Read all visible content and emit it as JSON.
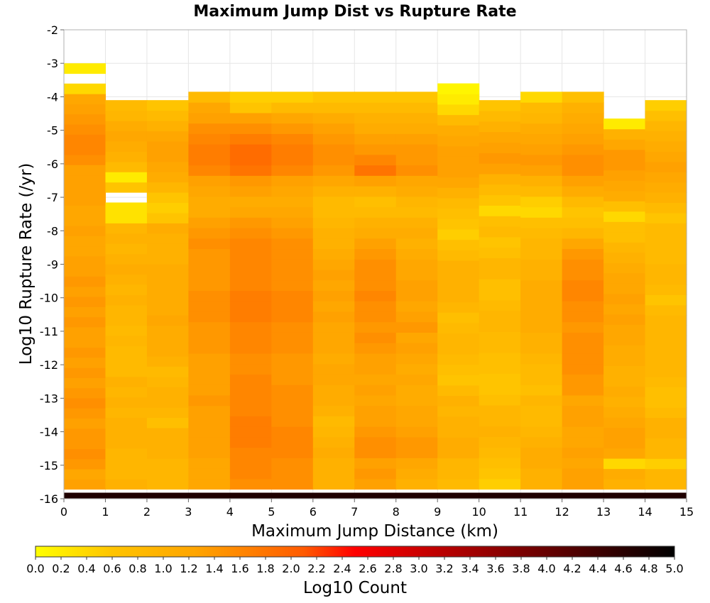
{
  "chart_data": {
    "type": "heatmap",
    "title": "Maximum Jump Dist vs Rupture Rate",
    "xlabel": "Maximum Jump Distance (km)",
    "ylabel": "Log10 Rupture Rate (/yr)",
    "xlim": [
      0,
      15
    ],
    "ylim": [
      -16,
      -2
    ],
    "x_ticks": [
      "0",
      "1",
      "2",
      "3",
      "4",
      "5",
      "6",
      "7",
      "8",
      "9",
      "10",
      "11",
      "12",
      "13",
      "14",
      "15"
    ],
    "y_ticks": [
      "-2",
      "-3",
      "-4",
      "-5",
      "-6",
      "-7",
      "-8",
      "-9",
      "-10",
      "-11",
      "-12",
      "-13",
      "-14",
      "-15",
      "-16"
    ],
    "x_bin_width": 1,
    "y_bin_width": 0.2857,
    "y_bin_start": -16,
    "colorbar": {
      "label": "Log10 Count",
      "range": [
        0,
        5
      ],
      "ticks": [
        "0.0",
        "0.2",
        "0.4",
        "0.6",
        "0.8",
        "1.0",
        "1.2",
        "1.4",
        "1.6",
        "1.8",
        "2.0",
        "2.2",
        "2.4",
        "2.6",
        "2.8",
        "3.0",
        "3.2",
        "3.4",
        "3.6",
        "3.8",
        "4.0",
        "4.2",
        "4.4",
        "4.6",
        "4.8",
        "5.0"
      ],
      "stops": [
        "#ffff00",
        "#ffa500",
        "#ff0000",
        "#000000"
      ]
    },
    "bottom_row_value": 4.7,
    "columns": [
      {
        "x_bin": "0-1",
        "top_rate": -3.0,
        "values": [
          1.3,
          1.2,
          1.4,
          1.5,
          1.4,
          1.4,
          1.3,
          1.4,
          1.5,
          1.4,
          1.3,
          1.4,
          1.3,
          1.4,
          1.3,
          1.3,
          1.4,
          1.3,
          1.4,
          1.3,
          1.4,
          1.3,
          1.3,
          1.2,
          1.2,
          1.3,
          1.2,
          1.2,
          1.3,
          1.3,
          1.3,
          1.3,
          1.5,
          1.6,
          1.6,
          1.5,
          1.4,
          1.3,
          1.2,
          0.4,
          null,
          0.2
        ]
      },
      {
        "x_bin": "1-2",
        "top_rate": -4.1,
        "values": [
          1.0,
          0.9,
          0.9,
          0.9,
          1.0,
          1.0,
          1.0,
          0.9,
          1.0,
          0.9,
          1.0,
          0.8,
          0.8,
          0.8,
          0.9,
          0.8,
          0.9,
          0.9,
          1.0,
          0.9,
          1.0,
          1.1,
          1.0,
          0.9,
          1.0,
          0.9,
          0.3,
          0.3,
          null,
          0.6,
          0.2,
          0.8,
          1.0,
          1.1,
          1.2,
          1.1,
          0.9,
          0.8
        ]
      },
      {
        "x_bin": "2-3",
        "top_rate": -4.1,
        "values": [
          0.9,
          0.9,
          0.9,
          1.0,
          1.0,
          1.0,
          0.7,
          0.9,
          1.0,
          1.0,
          0.9,
          0.8,
          1.0,
          1.1,
          1.1,
          1.1,
          1.2,
          1.1,
          1.1,
          1.1,
          1.1,
          1.1,
          1.0,
          1.0,
          1.0,
          1.1,
          0.6,
          0.5,
          0.6,
          0.9,
          1.1,
          1.2,
          1.3,
          1.3,
          1.2,
          1.0,
          0.8,
          0.6
        ]
      },
      {
        "x_bin": "3-4",
        "top_rate": -3.85,
        "values": [
          1.2,
          1.2,
          1.2,
          1.3,
          1.3,
          1.3,
          1.3,
          1.3,
          1.4,
          1.3,
          1.3,
          1.3,
          1.3,
          1.4,
          1.4,
          1.4,
          1.5,
          1.5,
          1.5,
          1.4,
          1.4,
          1.4,
          1.4,
          1.5,
          1.4,
          1.3,
          1.1,
          1.1,
          1.2,
          1.3,
          1.6,
          1.7,
          1.7,
          1.6,
          1.5,
          1.3,
          1.2,
          0.8
        ]
      },
      {
        "x_bin": "4-5",
        "top_rate": -3.85,
        "values": [
          1.5,
          1.6,
          1.6,
          1.6,
          1.7,
          1.7,
          1.7,
          1.6,
          1.6,
          1.6,
          1.6,
          1.5,
          1.5,
          1.6,
          1.6,
          1.6,
          1.7,
          1.7,
          1.7,
          1.6,
          1.6,
          1.6,
          1.6,
          1.6,
          1.5,
          1.4,
          1.2,
          1.1,
          1.3,
          1.4,
          1.8,
          1.9,
          1.9,
          1.7,
          1.5,
          1.3,
          0.6,
          0.5
        ]
      },
      {
        "x_bin": "5-6",
        "top_rate": -3.85,
        "values": [
          1.5,
          1.5,
          1.5,
          1.6,
          1.6,
          1.6,
          1.5,
          1.5,
          1.5,
          1.5,
          1.4,
          1.4,
          1.4,
          1.5,
          1.5,
          1.5,
          1.6,
          1.6,
          1.6,
          1.5,
          1.5,
          1.5,
          1.5,
          1.5,
          1.4,
          1.3,
          1.2,
          1.1,
          1.2,
          1.3,
          1.6,
          1.7,
          1.7,
          1.6,
          1.4,
          1.2,
          0.8,
          0.5
        ]
      },
      {
        "x_bin": "6-7",
        "top_rate": -3.85,
        "values": [
          1.0,
          1.0,
          1.0,
          1.1,
          1.0,
          0.9,
          0.8,
          1.0,
          1.1,
          1.1,
          1.2,
          1.2,
          1.1,
          1.2,
          1.2,
          1.2,
          1.3,
          1.2,
          1.3,
          1.2,
          1.3,
          1.2,
          1.1,
          1.0,
          1.0,
          0.9,
          0.8,
          0.8,
          1.0,
          1.2,
          1.4,
          1.5,
          1.5,
          1.4,
          1.3,
          1.1,
          0.8,
          0.6
        ]
      },
      {
        "x_bin": "7-8",
        "top_rate": -3.85,
        "values": [
          1.3,
          1.4,
          1.3,
          1.5,
          1.5,
          1.4,
          1.3,
          1.3,
          1.2,
          1.3,
          1.2,
          1.3,
          1.3,
          1.4,
          1.5,
          1.4,
          1.5,
          1.5,
          1.6,
          1.5,
          1.5,
          1.5,
          1.4,
          1.3,
          1.1,
          1.0,
          0.8,
          0.7,
          1.0,
          1.3,
          1.8,
          1.6,
          1.4,
          1.3,
          1.1,
          1.0,
          0.8,
          0.6
        ]
      },
      {
        "x_bin": "8-9",
        "top_rate": -3.85,
        "values": [
          1.0,
          1.1,
          1.2,
          1.4,
          1.4,
          1.3,
          1.2,
          1.2,
          1.1,
          1.1,
          1.2,
          1.1,
          1.2,
          1.3,
          1.2,
          1.4,
          1.3,
          1.2,
          1.3,
          1.3,
          1.2,
          1.2,
          1.1,
          1.0,
          1.1,
          1.0,
          0.8,
          0.9,
          1.1,
          1.2,
          1.5,
          1.4,
          1.4,
          1.3,
          1.1,
          1.0,
          0.8,
          0.6
        ]
      },
      {
        "x_bin": "9-10",
        "top_rate": -3.6,
        "values": [
          0.8,
          0.9,
          0.9,
          1.1,
          1.1,
          1.0,
          1.0,
          0.9,
          1.0,
          0.8,
          0.6,
          0.7,
          0.8,
          0.9,
          0.9,
          0.8,
          0.7,
          0.9,
          1.0,
          1.0,
          1.0,
          1.0,
          0.8,
          0.7,
          0.5,
          0.6,
          0.7,
          0.8,
          1.0,
          1.2,
          1.3,
          1.3,
          1.3,
          1.2,
          1.1,
          0.8,
          0.4,
          0.2,
          0.1
        ]
      },
      {
        "x_bin": "10-11",
        "top_rate": -4.1,
        "values": [
          0.5,
          0.6,
          0.7,
          0.8,
          0.9,
          1.0,
          0.9,
          0.9,
          0.7,
          0.6,
          0.6,
          0.7,
          0.7,
          0.8,
          0.8,
          0.9,
          0.9,
          0.8,
          0.7,
          0.7,
          0.9,
          0.9,
          0.7,
          0.6,
          0.8,
          0.7,
          0.4,
          0.6,
          0.8,
          1.0,
          1.3,
          1.4,
          1.3,
          1.2,
          1.0,
          0.8,
          0.6
        ]
      },
      {
        "x_bin": "11-12",
        "top_rate": -3.85,
        "values": [
          1.0,
          1.0,
          1.1,
          1.1,
          1.0,
          0.9,
          0.8,
          0.8,
          0.9,
          0.7,
          0.8,
          0.8,
          0.9,
          1.0,
          1.0,
          1.1,
          1.1,
          1.1,
          1.1,
          1.1,
          1.0,
          1.0,
          0.9,
          0.9,
          0.8,
          0.7,
          0.4,
          0.5,
          0.8,
          1.0,
          1.3,
          1.4,
          1.3,
          1.2,
          1.1,
          0.9,
          0.8,
          0.4
        ]
      },
      {
        "x_bin": "12-13",
        "top_rate": -3.85,
        "values": [
          1.3,
          1.3,
          1.2,
          1.3,
          1.2,
          1.2,
          1.3,
          1.3,
          1.2,
          1.4,
          1.4,
          1.5,
          1.5,
          1.5,
          1.5,
          1.4,
          1.5,
          1.5,
          1.6,
          1.6,
          1.5,
          1.5,
          1.4,
          1.2,
          0.9,
          0.7,
          0.6,
          0.8,
          1.1,
          1.3,
          1.5,
          1.5,
          1.4,
          1.3,
          1.2,
          1.1,
          1.0,
          0.7
        ]
      },
      {
        "x_bin": "13-14",
        "top_rate": -4.65,
        "values": [
          1.0,
          1.1,
          0.4,
          1.2,
          1.3,
          1.3,
          1.2,
          1.1,
          1.0,
          1.1,
          1.0,
          1.0,
          1.1,
          1.1,
          1.2,
          1.2,
          1.3,
          1.2,
          1.3,
          1.2,
          1.2,
          1.1,
          1.0,
          0.9,
          0.7,
          0.7,
          0.4,
          0.7,
          1.1,
          1.2,
          1.3,
          1.4,
          1.4,
          1.2,
          1.0,
          0.2
        ]
      },
      {
        "x_bin": "14-15",
        "top_rate": -4.1,
        "values": [
          0.9,
          0.9,
          0.5,
          0.9,
          0.9,
          1.0,
          1.0,
          0.8,
          0.7,
          0.7,
          0.8,
          0.9,
          0.9,
          0.9,
          0.9,
          0.9,
          0.9,
          0.8,
          0.6,
          0.8,
          0.9,
          0.9,
          0.8,
          0.8,
          0.8,
          0.8,
          0.6,
          0.8,
          1.0,
          1.1,
          1.2,
          1.3,
          1.2,
          1.1,
          1.0,
          0.9,
          0.7,
          0.5
        ]
      }
    ]
  }
}
